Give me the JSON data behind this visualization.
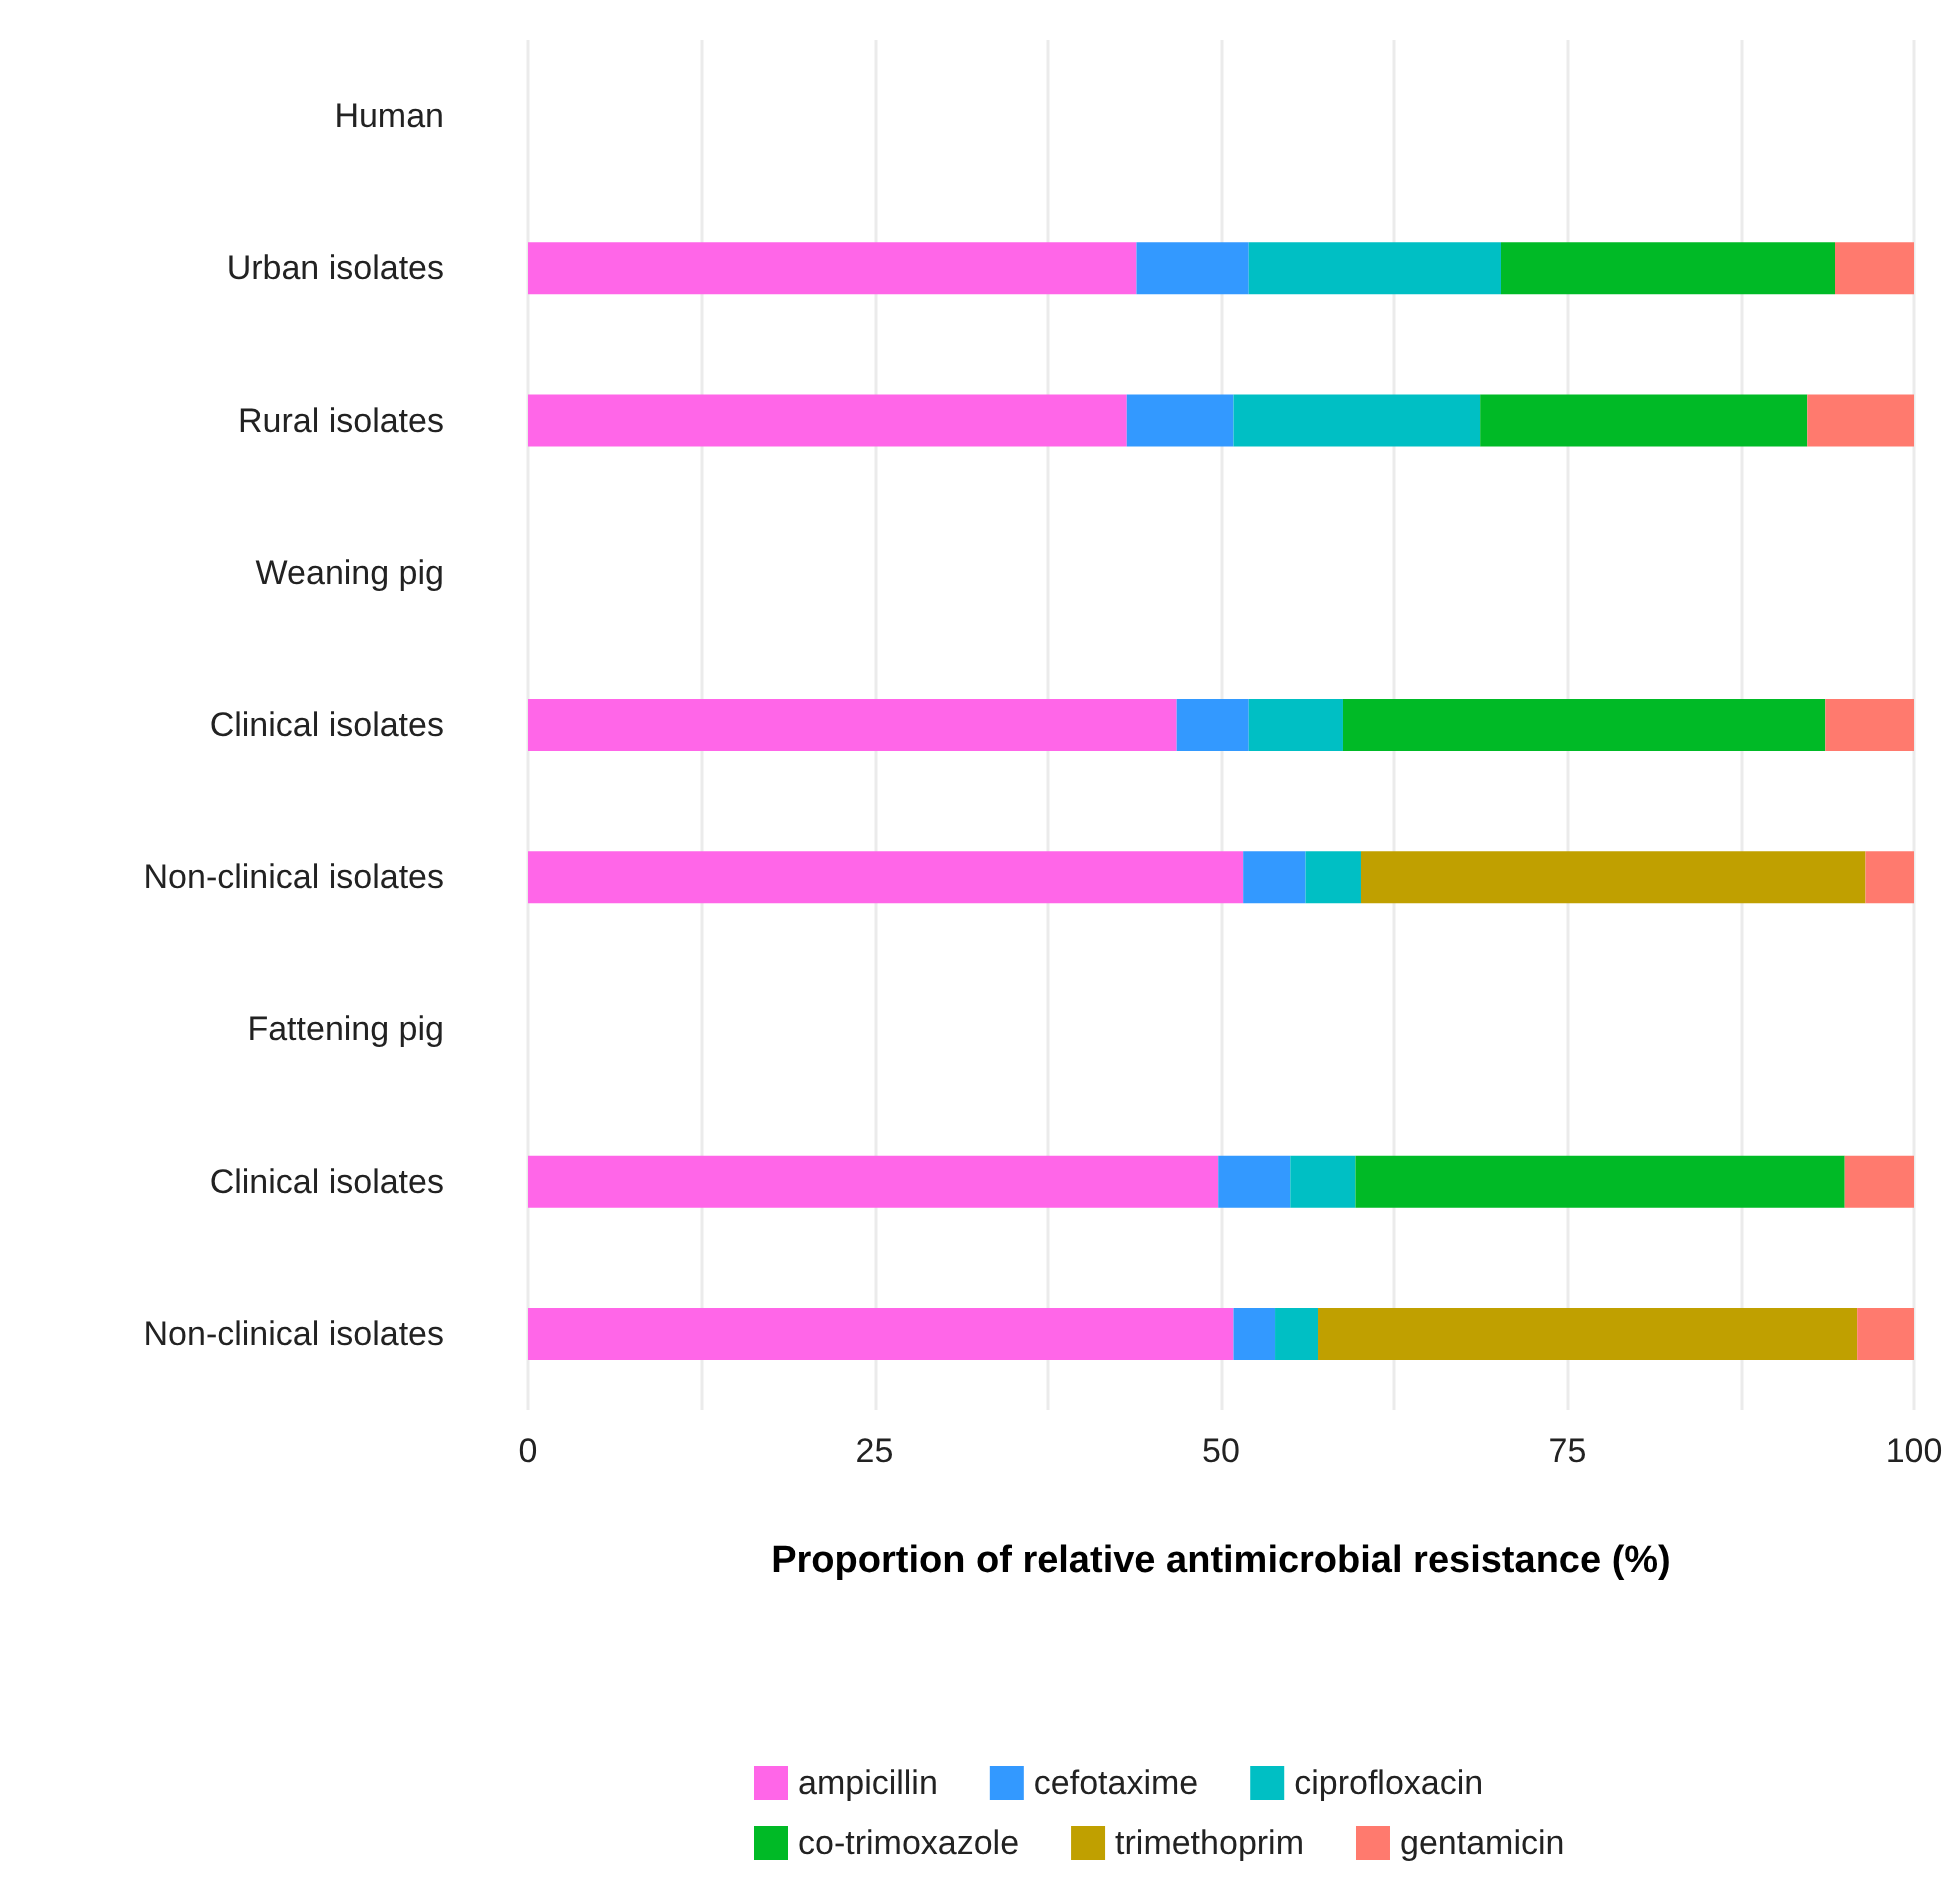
{
  "chart_data": {
    "type": "bar",
    "orientation": "horizontal",
    "stacked": true,
    "xlabel": "Proportion of relative antimicrobial resistance (%)",
    "categories": [
      "Human",
      "Urban isolates",
      "Rural isolates",
      "Weaning pig",
      "Clinical isolates",
      "Non-clinical isolates",
      "Fattening pig",
      "Clinical isolates",
      "Non-clinical isolates"
    ],
    "series": [
      {
        "name": "ampicillin",
        "color": "#ff66e8",
        "values": [
          null,
          43.9,
          43.2,
          null,
          46.8,
          51.6,
          null,
          49.8,
          50.9
        ]
      },
      {
        "name": "cefotaxime",
        "color": "#3399ff",
        "values": [
          null,
          8.1,
          7.7,
          null,
          5.2,
          4.5,
          null,
          5.2,
          3.0
        ]
      },
      {
        "name": "ciprofloxacin",
        "color": "#00bfc4",
        "values": [
          null,
          18.2,
          17.8,
          null,
          6.8,
          4.0,
          null,
          4.7,
          3.1
        ]
      },
      {
        "name": "co-trimoxazole",
        "color": "#00ba26",
        "values": [
          null,
          24.1,
          23.6,
          null,
          34.8,
          null,
          null,
          35.3,
          null
        ]
      },
      {
        "name": "trimethoprim",
        "color": "#c0a000",
        "values": [
          null,
          null,
          null,
          null,
          null,
          36.4,
          null,
          null,
          38.9
        ]
      },
      {
        "name": "gentamicin",
        "color": "#ff7a6e",
        "values": [
          null,
          5.7,
          7.7,
          null,
          6.4,
          3.5,
          null,
          5.0,
          4.1
        ]
      }
    ],
    "xlim": [
      0,
      100
    ],
    "xticks": [
      0,
      {
        "value": 12.5,
        "label": null
      },
      25,
      {
        "value": 37.5,
        "label": null
      },
      50,
      {
        "value": 62.5,
        "label": null
      },
      75,
      {
        "value": 87.5,
        "label": null
      },
      100
    ],
    "grid": "x",
    "legend": "bottom"
  }
}
